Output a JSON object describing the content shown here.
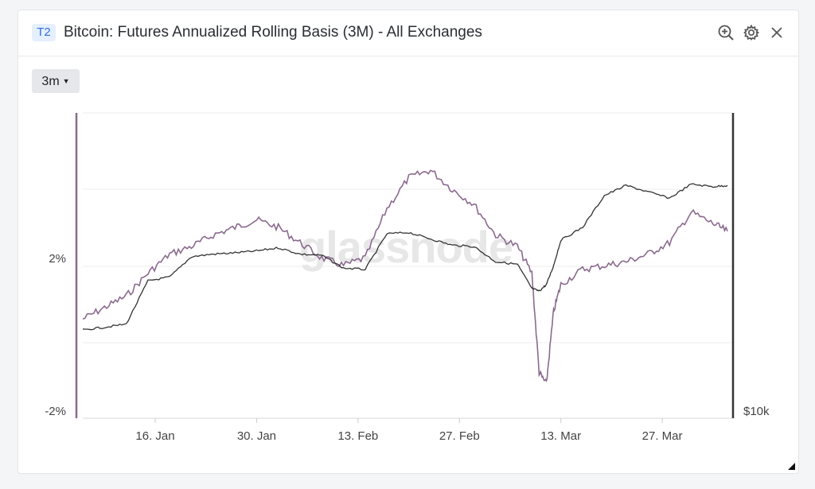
{
  "header": {
    "tag": "T2",
    "title": "Bitcoin: Futures Annualized Rolling Basis (3M) - All Exchanges",
    "icons": [
      "zoom-in-icon",
      "gear-icon",
      "close-icon"
    ]
  },
  "controls": {
    "range_label": "3m"
  },
  "watermark": "glassnode",
  "chart_data": {
    "type": "line",
    "title": "Bitcoin: Futures Annualized Rolling Basis (3M) - All Exchanges",
    "x_ticks": [
      "16. Jan",
      "30. Jan",
      "13. Feb",
      "27. Feb",
      "13. Mar",
      "27. Mar"
    ],
    "y_left_ticks": [
      "2%",
      "-2%"
    ],
    "y_right_ticks": [
      "$10k"
    ],
    "grid": true,
    "series": [
      {
        "axis": "left",
        "color": "#8b6a8f",
        "x": [
          "2023-01-06",
          "2023-01-09",
          "2023-01-12",
          "2023-01-15",
          "2023-01-18",
          "2023-01-21",
          "2023-01-24",
          "2023-01-27",
          "2023-01-30",
          "2023-02-02",
          "2023-02-05",
          "2023-02-08",
          "2023-02-11",
          "2023-02-14",
          "2023-02-17",
          "2023-02-20",
          "2023-02-23",
          "2023-02-26",
          "2023-03-01",
          "2023-03-04",
          "2023-03-07",
          "2023-03-09",
          "2023-03-10",
          "2023-03-11",
          "2023-03-12",
          "2023-03-13",
          "2023-03-16",
          "2023-03-19",
          "2023-03-22",
          "2023-03-25",
          "2023-03-28",
          "2023-03-31",
          "2023-04-03",
          "2023-04-05"
        ],
        "values": [
          0.6,
          0.9,
          1.2,
          1.8,
          2.3,
          2.5,
          2.8,
          3.0,
          3.2,
          3.0,
          2.6,
          2.2,
          2.0,
          2.2,
          3.5,
          4.3,
          4.5,
          4.0,
          3.6,
          2.8,
          2.5,
          1.8,
          -0.8,
          -1.1,
          0.8,
          1.5,
          1.9,
          2.0,
          2.1,
          2.3,
          2.6,
          3.4,
          3.1,
          2.9
        ]
      },
      {
        "axis": "right",
        "color": "#333333",
        "x": [
          "2023-01-06",
          "2023-01-09",
          "2023-01-12",
          "2023-01-15",
          "2023-01-18",
          "2023-01-21",
          "2023-01-24",
          "2023-01-27",
          "2023-01-30",
          "2023-02-02",
          "2023-02-05",
          "2023-02-08",
          "2023-02-11",
          "2023-02-14",
          "2023-02-17",
          "2023-02-20",
          "2023-02-23",
          "2023-02-26",
          "2023-03-01",
          "2023-03-04",
          "2023-03-07",
          "2023-03-09",
          "2023-03-10",
          "2023-03-11",
          "2023-03-12",
          "2023-03-13",
          "2023-03-16",
          "2023-03-19",
          "2023-03-22",
          "2023-03-25",
          "2023-03-28",
          "2023-03-31",
          "2023-04-03",
          "2023-04-05"
        ],
        "values": [
          16950,
          17150,
          17400,
          20800,
          21100,
          22700,
          22900,
          23000,
          23150,
          23400,
          22900,
          22800,
          21800,
          21700,
          24500,
          24600,
          24100,
          23600,
          23500,
          22300,
          22100,
          20200,
          20000,
          20500,
          22000,
          24000,
          25000,
          27500,
          28300,
          27800,
          27300,
          28400,
          28200,
          28300
        ]
      }
    ]
  }
}
